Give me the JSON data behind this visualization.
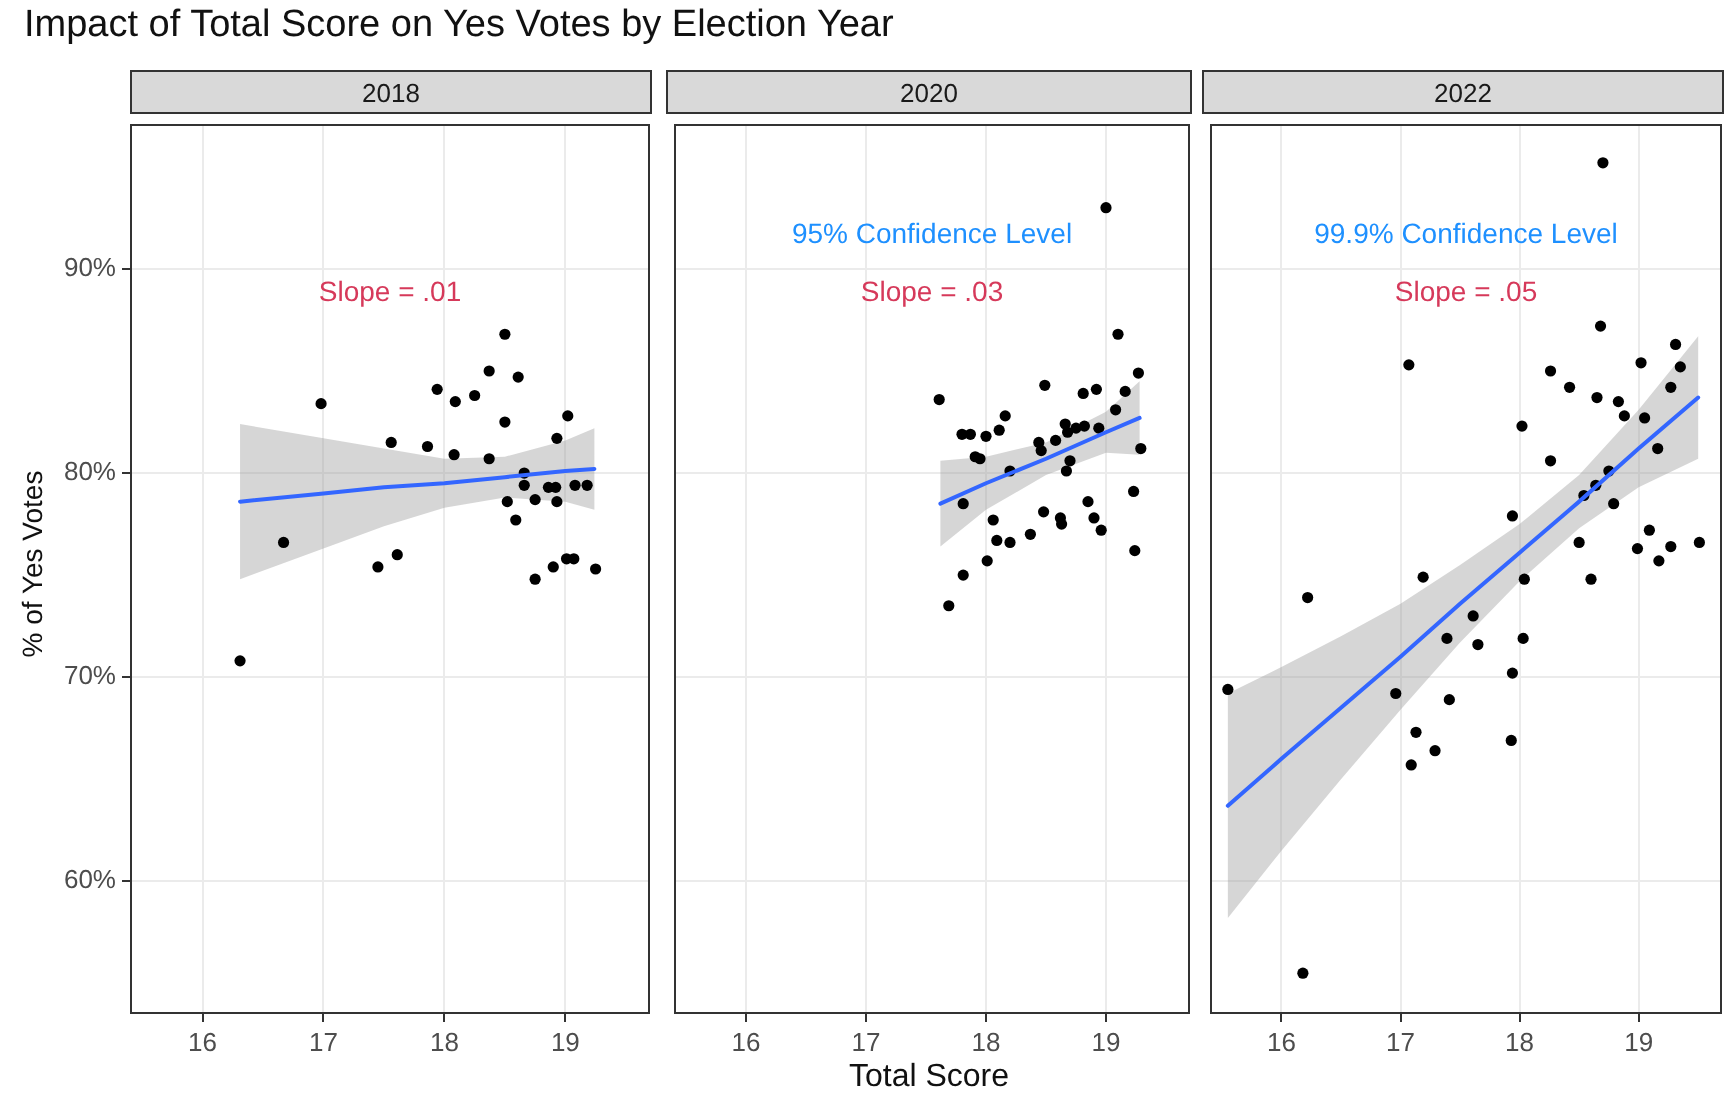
{
  "chart_data": [
    {
      "type": "scatter",
      "title": "Impact of Total Score on Yes Votes by Election Year",
      "subtitle": "2018",
      "ylabel": "% of Yes Votes",
      "xlim": [
        15.4,
        19.7
      ],
      "xticks": [
        16,
        17,
        18,
        19
      ],
      "ylim": [
        53.5,
        97.1
      ],
      "yticks": [
        {
          "value": 60,
          "label": "60%"
        },
        {
          "value": 70,
          "label": "70%"
        },
        {
          "value": 80,
          "label": "80%"
        },
        {
          "value": 90,
          "label": "90%"
        }
      ],
      "grid": true,
      "legend": false,
      "annotations": [
        "Slope = .01"
      ],
      "series": [
        {
          "type": "scatter",
          "marker": "circle",
          "color": "#000000",
          "x": [
            16.31,
            16.67,
            16.98,
            17.56,
            17.45,
            17.61,
            17.86,
            17.94,
            18.09,
            18.08,
            18.25,
            18.37,
            18.37,
            18.5,
            18.5,
            18.61,
            18.52,
            18.59,
            18.66,
            18.66,
            18.75,
            18.75,
            18.86,
            18.92,
            18.93,
            18.93,
            18.9,
            19.01,
            19.07,
            19.02,
            19.08,
            19.18,
            19.25
          ],
          "values": [
            70.8,
            76.6,
            83.4,
            81.5,
            75.4,
            76.0,
            81.3,
            84.1,
            83.5,
            80.9,
            83.8,
            85.0,
            80.7,
            86.8,
            82.5,
            84.7,
            78.6,
            77.7,
            80.0,
            79.4,
            78.7,
            74.8,
            79.3,
            79.3,
            78.6,
            81.7,
            75.4,
            75.8,
            75.8,
            82.8,
            79.4,
            79.4,
            75.3
          ]
        },
        {
          "type": "line",
          "marker": "none",
          "color": "#3366ff",
          "x": [
            16.31,
            17,
            17.5,
            18,
            18.5,
            19,
            19.24
          ],
          "values": [
            78.6,
            79.0,
            79.3,
            79.5,
            79.8,
            80.1,
            80.2
          ],
          "lower": [
            74.8,
            76.3,
            77.4,
            78.3,
            78.8,
            78.6,
            78.2
          ],
          "upper": [
            82.4,
            81.7,
            81.2,
            80.7,
            80.8,
            81.6,
            82.2
          ]
        }
      ]
    },
    {
      "type": "scatter",
      "subtitle": "2020",
      "xlabel": "Total Score",
      "xlim": [
        15.4,
        19.7
      ],
      "xticks": [
        16,
        17,
        18,
        19
      ],
      "ylim": [
        53.5,
        97.1
      ],
      "yticks": [
        60,
        70,
        80,
        90
      ],
      "tick_labels": "x",
      "grid": true,
      "legend": false,
      "annotations": [
        "95% Confidence Level",
        "Slope = .03"
      ],
      "series": [
        {
          "type": "scatter",
          "marker": "circle",
          "color": "#000000",
          "x": [
            17.61,
            17.69,
            17.8,
            17.87,
            17.81,
            17.81,
            17.91,
            17.95,
            18.0,
            18.01,
            18.06,
            18.11,
            18.16,
            18.09,
            18.2,
            18.2,
            18.37,
            18.44,
            18.46,
            18.49,
            18.48,
            18.58,
            18.62,
            18.63,
            18.66,
            18.67,
            18.7,
            18.68,
            18.75,
            18.82,
            18.81,
            18.85,
            18.9,
            18.92,
            18.96,
            18.94,
            19.0,
            19.08,
            19.1,
            19.16,
            19.23,
            19.24,
            19.27,
            19.29
          ],
          "values": [
            83.6,
            73.5,
            81.9,
            81.9,
            78.5,
            75.0,
            80.8,
            80.7,
            81.8,
            75.7,
            77.7,
            82.1,
            82.8,
            76.7,
            76.6,
            80.1,
            77.0,
            81.5,
            81.1,
            84.3,
            78.1,
            81.6,
            77.8,
            77.5,
            82.4,
            80.1,
            80.6,
            82.0,
            82.2,
            82.3,
            83.9,
            78.6,
            77.8,
            84.1,
            77.2,
            82.2,
            93.0,
            83.1,
            86.8,
            84.0,
            79.1,
            76.2,
            84.9,
            81.2
          ]
        },
        {
          "type": "line",
          "marker": "none",
          "color": "#3366ff",
          "x": [
            17.62,
            18,
            18.5,
            19,
            19.28
          ],
          "values": [
            78.5,
            79.5,
            80.7,
            82.0,
            82.7
          ],
          "lower": [
            76.4,
            78.2,
            79.9,
            81.0,
            80.9
          ],
          "upper": [
            80.6,
            80.8,
            81.5,
            83.0,
            84.5
          ]
        }
      ]
    },
    {
      "type": "scatter",
      "subtitle": "2022",
      "xlim": [
        15.4,
        19.7
      ],
      "xticks": [
        16,
        17,
        18,
        19
      ],
      "ylim": [
        53.5,
        97.1
      ],
      "yticks": [
        60,
        70,
        80,
        90
      ],
      "tick_labels": "x",
      "grid": true,
      "legend": false,
      "annotations": [
        "99.9% Confidence Level",
        "Slope = .05"
      ],
      "series": [
        {
          "type": "scatter",
          "marker": "circle",
          "color": "#000000",
          "x": [
            15.55,
            16.22,
            16.18,
            16.96,
            17.07,
            17.09,
            17.13,
            17.19,
            17.29,
            17.39,
            17.41,
            17.61,
            17.65,
            17.94,
            17.93,
            17.94,
            18.02,
            18.03,
            18.04,
            18.26,
            18.26,
            18.42,
            18.5,
            18.54,
            18.6,
            18.64,
            18.65,
            18.68,
            18.7,
            18.75,
            18.79,
            18.83,
            18.88,
            18.99,
            19.02,
            19.05,
            19.09,
            19.16,
            19.17,
            19.27,
            19.27,
            19.31,
            19.35,
            19.51
          ],
          "values": [
            69.4,
            73.9,
            55.5,
            69.2,
            85.3,
            65.7,
            67.3,
            74.9,
            66.4,
            71.9,
            68.9,
            73.0,
            71.6,
            77.9,
            66.9,
            70.2,
            82.3,
            71.9,
            74.8,
            85.0,
            80.6,
            84.2,
            76.6,
            78.9,
            74.8,
            79.4,
            83.7,
            87.2,
            95.2,
            80.1,
            78.5,
            83.5,
            82.8,
            76.3,
            85.4,
            82.7,
            77.2,
            81.2,
            75.7,
            84.2,
            76.4,
            86.3,
            85.2,
            76.6
          ]
        },
        {
          "type": "line",
          "marker": "none",
          "color": "#3366ff",
          "x": [
            15.55,
            16,
            16.5,
            17,
            17.5,
            18,
            18.5,
            19,
            19.5
          ],
          "values": [
            63.7,
            66.0,
            68.5,
            71.0,
            73.6,
            76.1,
            78.6,
            81.2,
            83.7
          ],
          "lower": [
            58.2,
            61.5,
            65.0,
            68.4,
            71.7,
            74.7,
            77.3,
            79.3,
            80.7
          ],
          "upper": [
            69.2,
            70.5,
            72.0,
            73.6,
            75.5,
            77.5,
            79.9,
            83.1,
            86.7
          ]
        }
      ]
    }
  ]
}
